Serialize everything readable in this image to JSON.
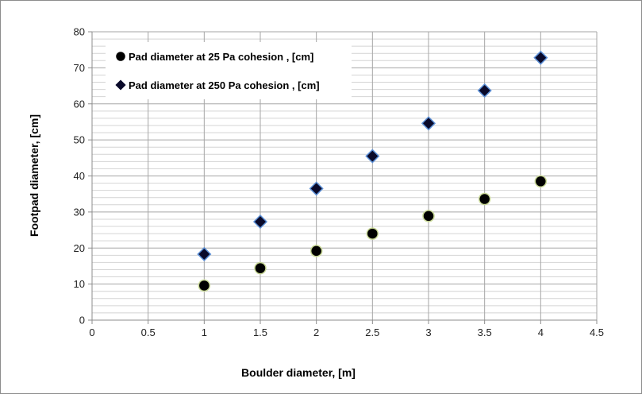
{
  "chart_data": {
    "type": "scatter",
    "title": "",
    "xlabel": "Boulder diameter, [m]",
    "ylabel": "Footpad diameter, [cm]",
    "xlim": [
      0,
      4.5
    ],
    "ylim": [
      0,
      80
    ],
    "x_ticks": [
      "0",
      "0.5",
      "1",
      "1.5",
      "2",
      "2.5",
      "3",
      "3.5",
      "4",
      "4.5"
    ],
    "y_ticks": [
      "0",
      "10",
      "20",
      "30",
      "40",
      "50",
      "60",
      "70",
      "80"
    ],
    "grid": true,
    "legend_position": "top-left",
    "series": [
      {
        "name": "Pad diameter at 25 Pa cohesion , [cm]",
        "marker": "circle",
        "color": "#000000",
        "edge_color": "#c8d896",
        "x": [
          1,
          1.5,
          2,
          2.5,
          3,
          3.5,
          4
        ],
        "y": [
          9.6,
          14.4,
          19.2,
          24.0,
          28.9,
          33.6,
          38.5
        ]
      },
      {
        "name": "Pad diameter at 250 Pa cohesion , [cm]",
        "marker": "diamond",
        "color": "#0a0a2a",
        "edge_color": "#5b8fd6",
        "x": [
          1,
          1.5,
          2,
          2.5,
          3,
          3.5,
          4
        ],
        "y": [
          18.3,
          27.3,
          36.5,
          45.5,
          54.6,
          63.7,
          72.8
        ]
      }
    ]
  }
}
